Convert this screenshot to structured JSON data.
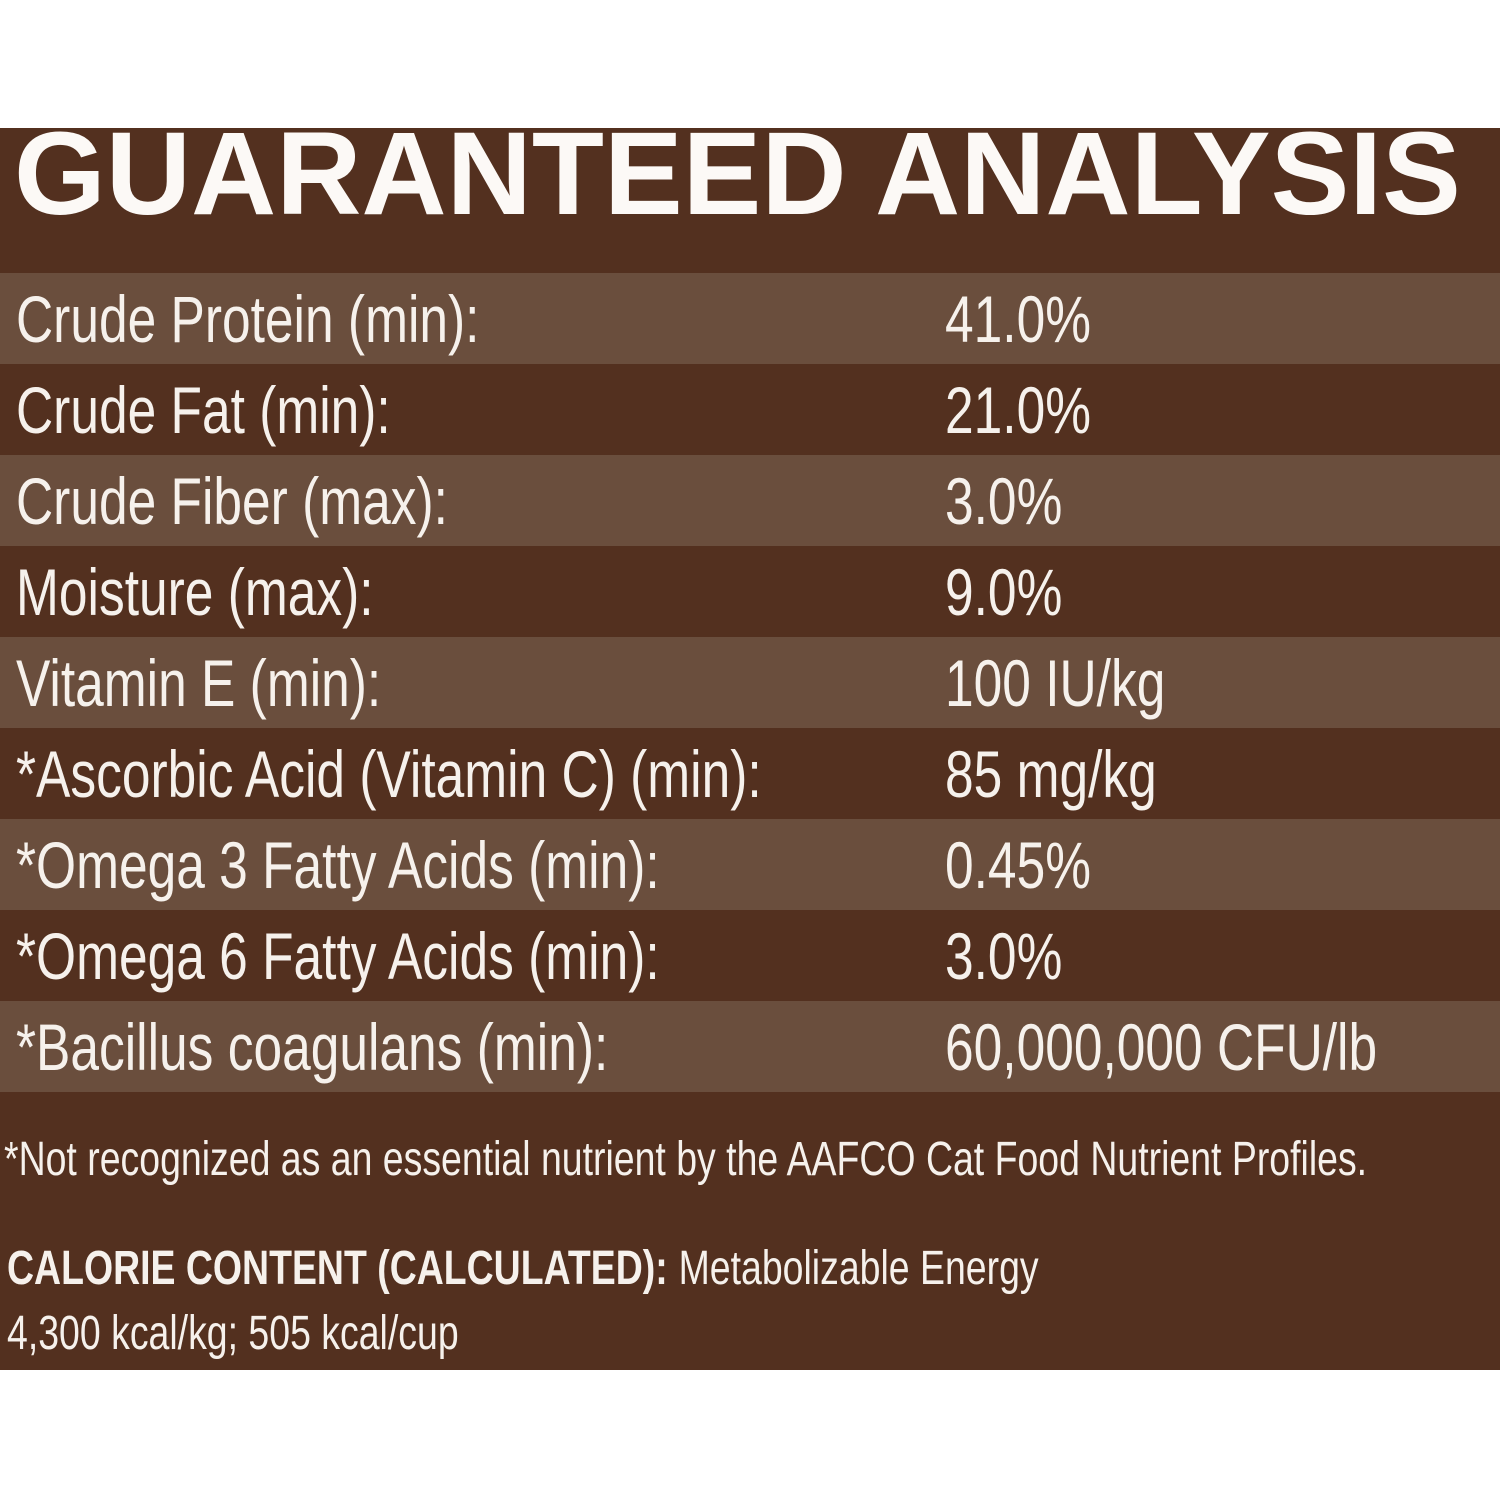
{
  "panel": {
    "title": "GUARANTEED ANALYSIS",
    "colors": {
      "page_background": "#FFFFFF",
      "panel_background": "#53301F",
      "row_stripe": "#6A4E3D",
      "text": "#F6F1EC"
    },
    "rows": [
      {
        "label": "Crude Protein (min):",
        "value": "41.0%"
      },
      {
        "label": "Crude Fat (min):",
        "value": "21.0%"
      },
      {
        "label": "Crude Fiber (max):",
        "value": "3.0%"
      },
      {
        "label": "Moisture (max):",
        "value": "9.0%"
      },
      {
        "label": "Vitamin E (min):",
        "value": "100 IU/kg"
      },
      {
        "label": "*Ascorbic Acid (Vitamin C) (min):",
        "value": "85 mg/kg"
      },
      {
        "label": "*Omega 3 Fatty Acids (min):",
        "value": "0.45%"
      },
      {
        "label": "*Omega 6 Fatty Acids (min):",
        "value": "3.0%"
      },
      {
        "label": "*Bacillus coagulans (min):",
        "value": "60,000,000 CFU/lb"
      }
    ],
    "footnote": "*Not recognized as an essential nutrient by the AAFCO Cat Food Nutrient Profiles.",
    "calorie": {
      "heading": "CALORIE CONTENT (CALCULATED):",
      "text": "Metabolizable Energy",
      "values": "4,300 kcal/kg; 505 kcal/cup"
    }
  }
}
